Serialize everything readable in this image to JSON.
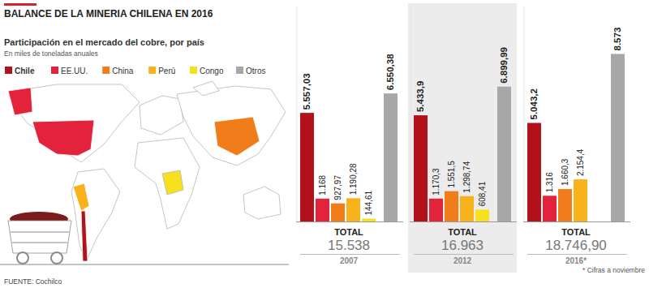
{
  "chart_data": {
    "type": "bar",
    "title": "BALANCE DE LA MINERIA CHILENA EN 2016",
    "subtitle": "Participación en el mercado del cobre, por país",
    "y_label": "En miles de toneladas anuales",
    "categories": [
      "2007",
      "2012",
      "2016*"
    ],
    "series": [
      {
        "name": "Chile",
        "color": "#b3121d",
        "values": [
          5557.03,
          5433.9,
          5043.2
        ],
        "value_labels": [
          "5.557,03",
          "5.433,9",
          "5.043,2"
        ]
      },
      {
        "name": "EE.UU.",
        "color": "#e2233b",
        "values": [
          1168,
          1170.3,
          1316
        ],
        "value_labels": [
          "1.168",
          "1.170,3",
          "1.316"
        ]
      },
      {
        "name": "China",
        "color": "#f07d19",
        "values": [
          927.97,
          1551.5,
          1660.3
        ],
        "value_labels": [
          "927,97",
          "1.551,5",
          "1.660,3"
        ]
      },
      {
        "name": "Perú",
        "color": "#f8b21c",
        "values": [
          1190.28,
          1298.74,
          2154.4
        ],
        "value_labels": [
          "1.190,28",
          "1.298,74",
          "2.154,4"
        ]
      },
      {
        "name": "Congo",
        "color": "#f6e11e",
        "values": [
          144.61,
          608.41,
          null
        ],
        "value_labels": [
          "144,61",
          "608,41",
          null
        ]
      },
      {
        "name": "Otros",
        "color": "#a7a7a7",
        "values": [
          6550.38,
          6899.99,
          8573
        ],
        "value_labels": [
          "6.550,38",
          "6.899,99",
          "8.573"
        ]
      }
    ],
    "totals_label": "TOTAL",
    "totals": [
      {
        "value": 15538,
        "label": "15.538"
      },
      {
        "value": 16963,
        "label": "16.963"
      },
      {
        "value": 18746.9,
        "label": "18.746,90"
      }
    ],
    "ylim": [
      0,
      11000
    ],
    "legend": "top-left",
    "data_labels": true,
    "tick_labels": "x",
    "note": "* Cifras a noviembre",
    "source": "FUENTE: Cochilco"
  }
}
